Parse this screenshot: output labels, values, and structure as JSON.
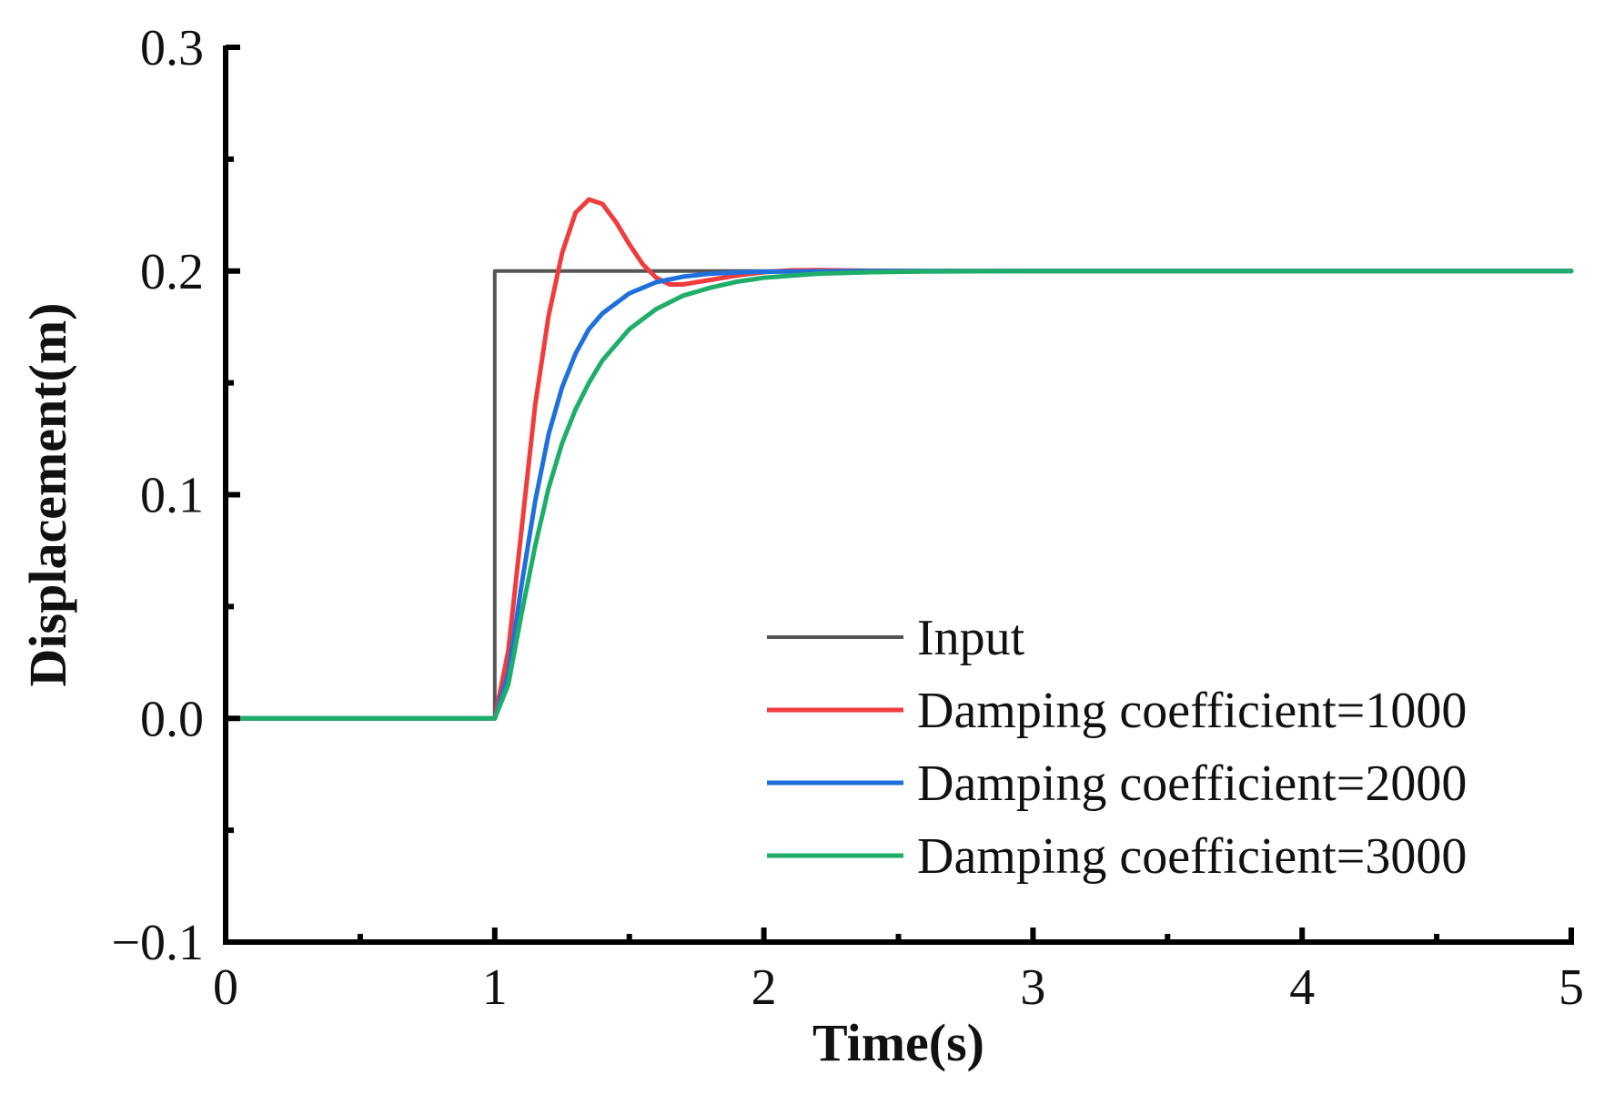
{
  "chart_data": {
    "type": "line",
    "title": "",
    "xlabel": "Time(s)",
    "ylabel": "Displacement(m)",
    "xlim": [
      0,
      5
    ],
    "ylim": [
      -0.1,
      0.3
    ],
    "x_ticks": [
      0,
      1,
      2,
      3,
      4,
      5
    ],
    "x_tick_labels": [
      "0",
      "1",
      "2",
      "3",
      "4",
      "5"
    ],
    "y_ticks": [
      -0.1,
      0.0,
      0.1,
      0.2,
      0.3
    ],
    "y_tick_labels": [
      "−0.1",
      "0.0",
      "0.1",
      "0.2",
      "0.3"
    ],
    "grid": false,
    "legend_position": "bottom-right",
    "series": [
      {
        "name": "Input",
        "color": "#555555",
        "x": [
          0,
          1,
          1,
          5
        ],
        "y": [
          0,
          0,
          0.2,
          0.2
        ]
      },
      {
        "name": "Damping coefficient=1000",
        "color": "#f03c3c",
        "x": [
          0,
          1.0,
          1.05,
          1.1,
          1.15,
          1.2,
          1.25,
          1.3,
          1.35,
          1.4,
          1.45,
          1.5,
          1.55,
          1.6,
          1.65,
          1.7,
          1.75,
          1.8,
          1.9,
          2.0,
          2.1,
          2.2,
          2.4,
          2.6,
          3.0,
          5.0
        ],
        "y": [
          0,
          0,
          0.03,
          0.085,
          0.14,
          0.18,
          0.208,
          0.226,
          0.232,
          0.23,
          0.222,
          0.212,
          0.203,
          0.197,
          0.194,
          0.194,
          0.195,
          0.196,
          0.198,
          0.1995,
          0.2003,
          0.2004,
          0.2001,
          0.2,
          0.2,
          0.2
        ]
      },
      {
        "name": "Damping coefficient=2000",
        "color": "#1f6fdc",
        "x": [
          0,
          1.0,
          1.05,
          1.1,
          1.15,
          1.2,
          1.25,
          1.3,
          1.35,
          1.4,
          1.5,
          1.6,
          1.7,
          1.8,
          1.9,
          2.0,
          2.2,
          2.4,
          2.6,
          3.0,
          5.0
        ],
        "y": [
          0,
          0,
          0.02,
          0.06,
          0.097,
          0.127,
          0.148,
          0.163,
          0.174,
          0.181,
          0.19,
          0.195,
          0.1975,
          0.1988,
          0.1994,
          0.1997,
          0.1999,
          0.2,
          0.2,
          0.2,
          0.2
        ]
      },
      {
        "name": "Damping coefficient=3000",
        "color": "#1fae6a",
        "x": [
          0,
          1.0,
          1.05,
          1.1,
          1.15,
          1.2,
          1.25,
          1.3,
          1.35,
          1.4,
          1.5,
          1.6,
          1.7,
          1.8,
          1.9,
          2.0,
          2.2,
          2.4,
          2.6,
          3.0,
          5.0
        ],
        "y": [
          0,
          0,
          0.015,
          0.047,
          0.077,
          0.103,
          0.123,
          0.138,
          0.15,
          0.16,
          0.174,
          0.183,
          0.189,
          0.1925,
          0.1952,
          0.197,
          0.1988,
          0.1995,
          0.1998,
          0.2,
          0.2
        ]
      }
    ]
  }
}
